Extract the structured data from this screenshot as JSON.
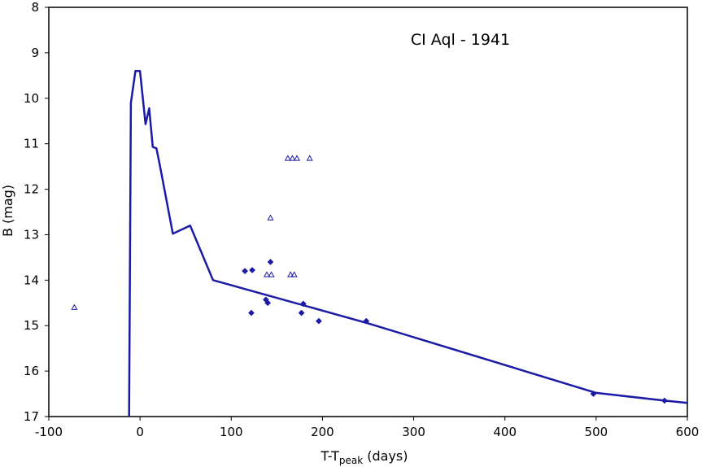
{
  "chart_data": {
    "type": "scatter",
    "title": "CI Aql - 1941",
    "xlabel_main": "T-T",
    "xlabel_sub": "peak",
    "xlabel_tail": " (days)",
    "ylabel": "B (mag)",
    "xlim": [
      -100,
      600
    ],
    "ylim": [
      8,
      17
    ],
    "y_inverted": true,
    "grid": false,
    "legend": "none",
    "x_ticks": [
      -100,
      0,
      100,
      200,
      300,
      400,
      500,
      600
    ],
    "y_ticks": [
      8,
      9,
      10,
      11,
      12,
      13,
      14,
      15,
      16,
      17
    ],
    "colors": {
      "series": "#1a1aa6",
      "axis": "#000000"
    },
    "series": [
      {
        "kind": "line",
        "x": [
          -12,
          -10,
          -5,
          0,
          6,
          10,
          14,
          18,
          22,
          36,
          55,
          80,
          250,
          500,
          575,
          600
        ],
        "y": [
          17.0,
          10.1,
          9.4,
          9.4,
          10.57,
          10.22,
          11.07,
          11.1,
          11.5,
          12.98,
          12.8,
          14.0,
          14.95,
          16.48,
          16.65,
          16.7
        ]
      },
      {
        "kind": "diamond",
        "x": [
          115,
          122,
          123,
          138,
          140,
          143,
          177,
          179,
          196,
          248,
          497,
          575
        ],
        "y": [
          13.8,
          14.72,
          13.78,
          14.43,
          14.5,
          13.6,
          14.72,
          14.52,
          14.9,
          14.9,
          16.5,
          16.65
        ]
      },
      {
        "kind": "triangle",
        "x": [
          -72,
          162,
          167,
          172,
          186,
          143,
          139,
          144,
          165,
          169
        ],
        "y": [
          14.6,
          11.32,
          11.32,
          11.32,
          11.32,
          12.63,
          13.88,
          13.88,
          13.88,
          13.88
        ]
      }
    ]
  }
}
